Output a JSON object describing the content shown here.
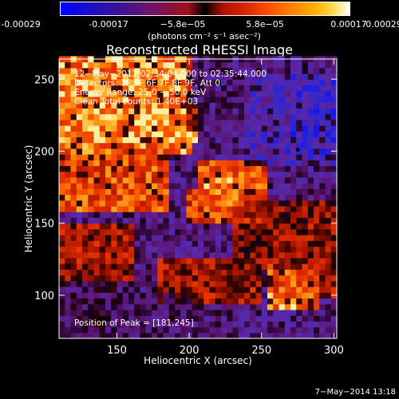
{
  "colorbar": {
    "ticks": [
      "-0.00029",
      "-0.00017",
      "−5.8e−05",
      "5.8e−05",
      "0.00017",
      "0.00029"
    ],
    "units": "(photons cm⁻² s⁻¹ asec⁻²)"
  },
  "chart_data": {
    "type": "heatmap",
    "title": "Reconstructed RHESSI Image",
    "xlabel": "Heliocentric X (arcsec)",
    "ylabel": "Heliocentric Y (arcsec)",
    "xlim": [
      110,
      302
    ],
    "ylim": [
      70,
      264
    ],
    "xticks": [
      150,
      200,
      250,
      300
    ],
    "yticks": [
      100,
      150,
      200,
      250
    ],
    "color_range": [
      -0.00029,
      0.00029
    ],
    "annotations": [
      "12−May−2012 02:34:04.000 to 02:35:44.000",
      "Detectors: 3F 5F 6F 7F 8F 9F, Att 0",
      "Energy Range: 25.0 − 50.0 keV",
      "Clean    Total counts: 1.40E+03"
    ],
    "peak_label": "Position of Peak = [181,245]",
    "peak": {
      "x": 181,
      "y": 245
    },
    "marker": {
      "x": 275,
      "y": 201
    },
    "regions": [
      {
        "x0": 110,
        "x1": 200,
        "y0": 200,
        "y1": 264,
        "level": 0.8
      },
      {
        "x0": 110,
        "x1": 185,
        "y0": 160,
        "y1": 205,
        "level": 0.6
      },
      {
        "x0": 140,
        "x1": 205,
        "y0": 205,
        "y1": 235,
        "level": 0.9
      },
      {
        "x0": 200,
        "x1": 255,
        "y0": 150,
        "y1": 175,
        "level": 0.55
      },
      {
        "x0": 205,
        "x1": 255,
        "y0": 175,
        "y1": 195,
        "level": 0.6
      },
      {
        "x0": 210,
        "x1": 245,
        "y0": 160,
        "y1": 180,
        "level": 0.9
      },
      {
        "x0": 110,
        "x1": 160,
        "y0": 110,
        "y1": 150,
        "level": 0.3
      },
      {
        "x0": 260,
        "x1": 302,
        "y0": 100,
        "y1": 150,
        "level": 0.35
      },
      {
        "x0": 255,
        "x1": 290,
        "y0": 90,
        "y1": 120,
        "level": 0.8
      },
      {
        "x0": 180,
        "x1": 250,
        "y0": 95,
        "y1": 125,
        "level": 0.3
      },
      {
        "x0": 230,
        "x1": 302,
        "y0": 120,
        "y1": 165,
        "level": 0.2
      },
      {
        "x0": 240,
        "x1": 302,
        "y0": 190,
        "y1": 255,
        "level": -0.6
      },
      {
        "x0": 270,
        "x1": 302,
        "y0": 200,
        "y1": 250,
        "level": -0.85
      },
      {
        "x0": 200,
        "x1": 240,
        "y0": 215,
        "y1": 264,
        "level": -0.3
      },
      {
        "x0": 150,
        "x1": 200,
        "y0": 70,
        "y1": 100,
        "level": -0.25
      },
      {
        "x0": 110,
        "x1": 150,
        "y0": 70,
        "y1": 110,
        "level": -0.2
      }
    ]
  },
  "footer": {
    "date": "7−May−2014 13:18"
  }
}
